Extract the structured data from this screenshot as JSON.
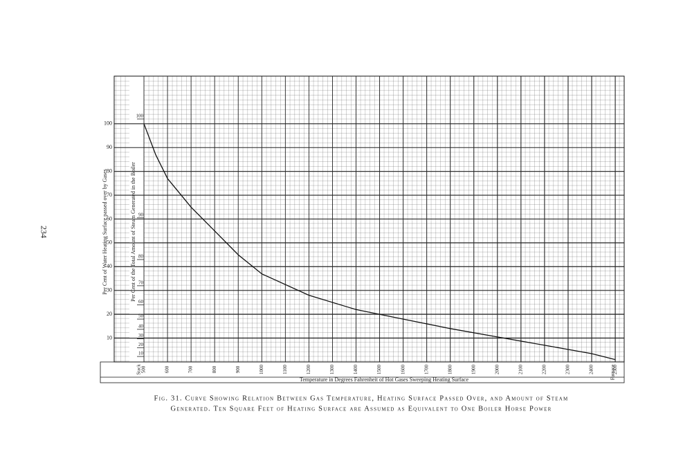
{
  "page_number": "234",
  "chart_data": {
    "type": "line",
    "ylabel": "Per Cent of Water Heating Surface passed over by Gases",
    "y2label": "Per Cent of the Total Amount of Steam Generated in the Boiler",
    "xlabel": "Temperature in Degrees Fahrenheit of Hot Gases Sweeping Heating Surface",
    "x_start_label": "Stack",
    "x_end_label": "Furnace",
    "x": [
      500,
      550,
      600,
      700,
      800,
      900,
      1000,
      1200,
      1400,
      1600,
      1800,
      2000,
      2200,
      2400,
      2500
    ],
    "values": [
      100,
      87,
      77,
      65,
      55,
      45,
      37,
      28,
      22,
      18,
      14,
      10.5,
      7,
      3.5,
      1
    ],
    "color": "#111111",
    "xlim": [
      500,
      2520
    ],
    "ylim": [
      0,
      120
    ],
    "xticks": [
      500,
      600,
      700,
      800,
      900,
      1000,
      1100,
      1200,
      1300,
      1400,
      1500,
      1600,
      1700,
      1800,
      1900,
      2000,
      2100,
      2200,
      2300,
      2400,
      2500
    ],
    "yticks": [
      10,
      20,
      30,
      40,
      50,
      60,
      70,
      80,
      90,
      100
    ],
    "y2ticks": [
      10,
      20,
      30,
      40,
      50,
      60,
      70,
      80,
      90,
      100
    ],
    "y2tick_positions": [
      2.3,
      6,
      9.7,
      13.7,
      18,
      24,
      32,
      43,
      60.5,
      102
    ],
    "grid": true,
    "caption": [
      "Fig. 31. Curve Showing Relation Between Gas Temperature, Heating Surface Passed Over, and Amount of Steam",
      "Generated. Ten Square Feet of Heating Surface are Assumed as Equivalent to One Boiler Horse Power"
    ]
  }
}
